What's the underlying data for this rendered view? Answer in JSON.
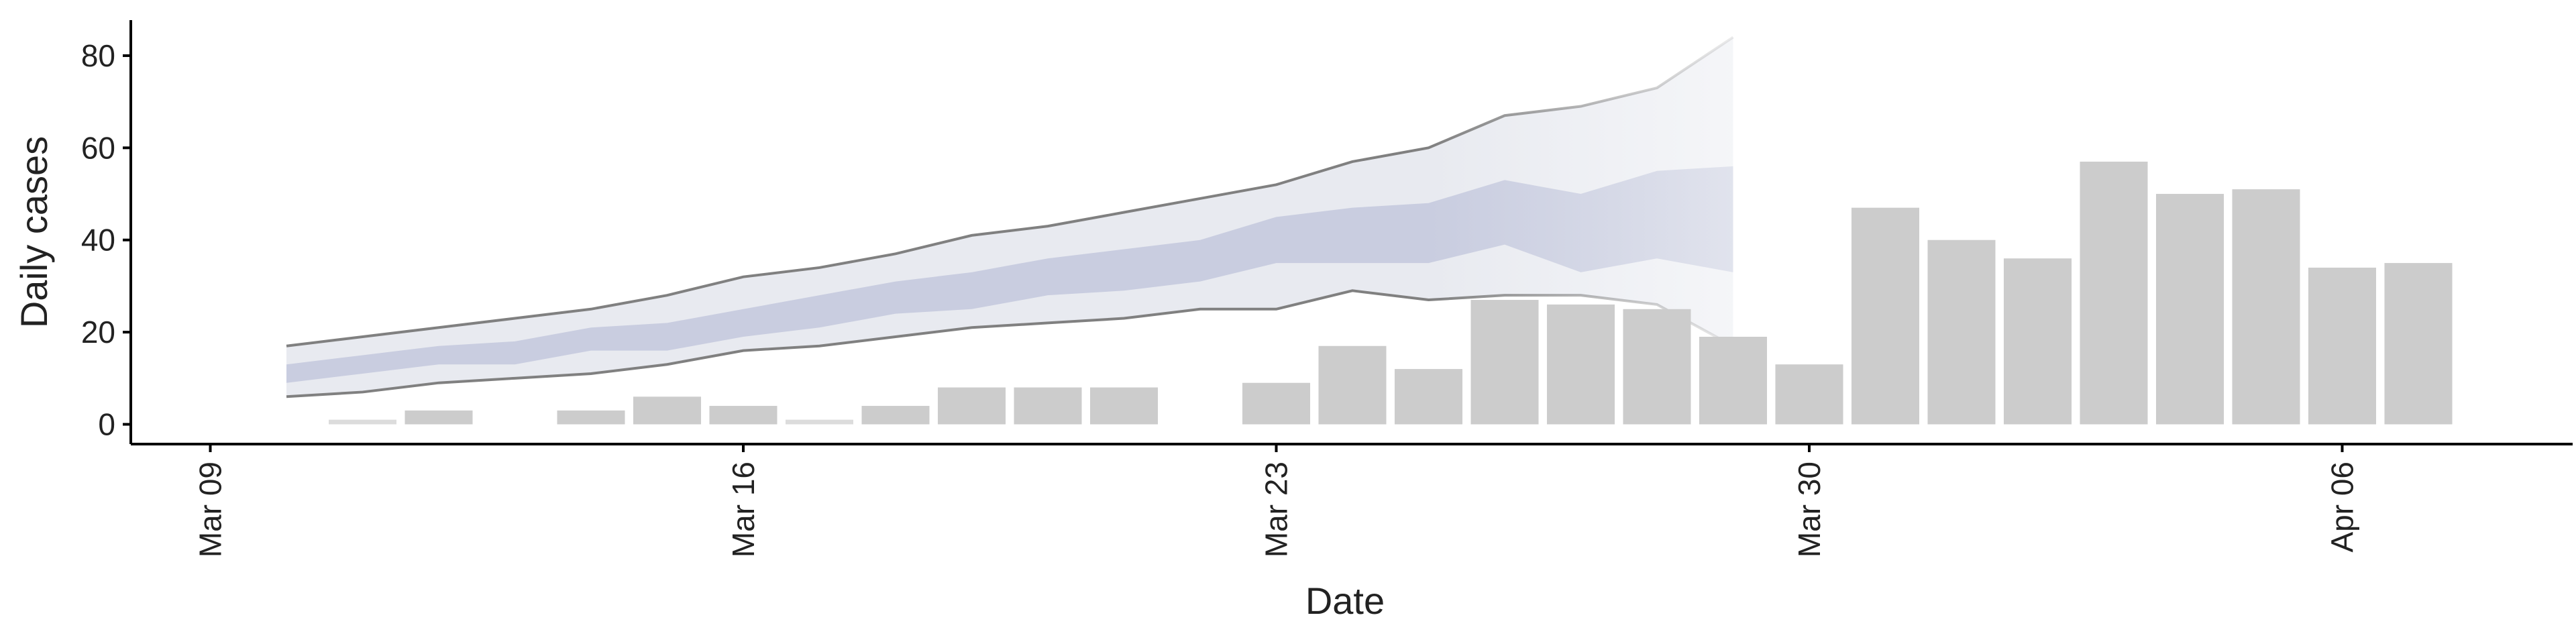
{
  "chart_data": {
    "type": "bar",
    "xlabel": "Date",
    "ylabel": "Daily cases",
    "x_ticks": [
      "Mar 09",
      "Mar 16",
      "Mar 23",
      "Mar 30",
      "Apr 06"
    ],
    "x_tick_dates": [
      "2020-03-09",
      "2020-03-16",
      "2020-03-23",
      "2020-03-30",
      "2020-04-06"
    ],
    "y_ticks": [
      0,
      20,
      40,
      60,
      80
    ],
    "ylim": [
      -4,
      88
    ],
    "xlim": [
      "2020-03-08",
      "2020-04-09"
    ],
    "grid": false,
    "bars": {
      "dates": [
        "2020-03-11",
        "2020-03-12",
        "2020-03-14",
        "2020-03-15",
        "2020-03-16",
        "2020-03-17",
        "2020-03-18",
        "2020-03-19",
        "2020-03-20",
        "2020-03-21",
        "2020-03-23",
        "2020-03-24",
        "2020-03-25",
        "2020-03-26",
        "2020-03-27",
        "2020-03-28",
        "2020-03-29",
        "2020-03-30",
        "2020-03-31",
        "2020-04-01",
        "2020-04-02",
        "2020-04-03",
        "2020-04-04",
        "2020-04-05",
        "2020-04-06",
        "2020-04-07"
      ],
      "values": [
        1,
        3,
        3,
        6,
        4,
        1,
        4,
        8,
        8,
        8,
        9,
        17,
        12,
        27,
        26,
        25,
        19,
        13,
        47,
        40,
        36,
        57,
        50,
        51,
        34,
        35
      ],
      "faded": [
        true,
        false,
        false,
        false,
        false,
        true,
        false,
        false,
        false,
        false,
        false,
        false,
        false,
        false,
        false,
        false,
        false,
        false,
        false,
        false,
        false,
        false,
        false,
        false,
        false,
        false
      ],
      "color": "#cccccc",
      "faded_color": "#dcdcdc"
    },
    "band": {
      "dates": [
        "2020-03-10",
        "2020-03-11",
        "2020-03-12",
        "2020-03-13",
        "2020-03-14",
        "2020-03-15",
        "2020-03-16",
        "2020-03-17",
        "2020-03-18",
        "2020-03-19",
        "2020-03-20",
        "2020-03-21",
        "2020-03-22",
        "2020-03-23",
        "2020-03-24",
        "2020-03-25",
        "2020-03-26",
        "2020-03-27",
        "2020-03-28",
        "2020-03-29"
      ],
      "outer_upper": [
        17,
        19,
        21,
        23,
        25,
        28,
        32,
        34,
        37,
        41,
        43,
        46,
        49,
        52,
        57,
        60,
        67,
        69,
        73,
        84
      ],
      "outer_lower": [
        6,
        7,
        9,
        10,
        11,
        13,
        16,
        17,
        19,
        21,
        22,
        23,
        25,
        25,
        29,
        27,
        28,
        28,
        26,
        17
      ],
      "inner_upper": [
        13,
        15,
        17,
        18,
        21,
        22,
        25,
        28,
        31,
        33,
        36,
        38,
        40,
        45,
        47,
        48,
        53,
        50,
        55,
        56
      ],
      "inner_lower": [
        9,
        11,
        13,
        13,
        16,
        16,
        19,
        21,
        24,
        25,
        28,
        29,
        31,
        35,
        35,
        35,
        39,
        33,
        36,
        33
      ],
      "solid_until": "2020-03-25",
      "outer_color": "#e8eaf0",
      "inner_color": "#c9cde0",
      "line_color": "#808080"
    }
  }
}
